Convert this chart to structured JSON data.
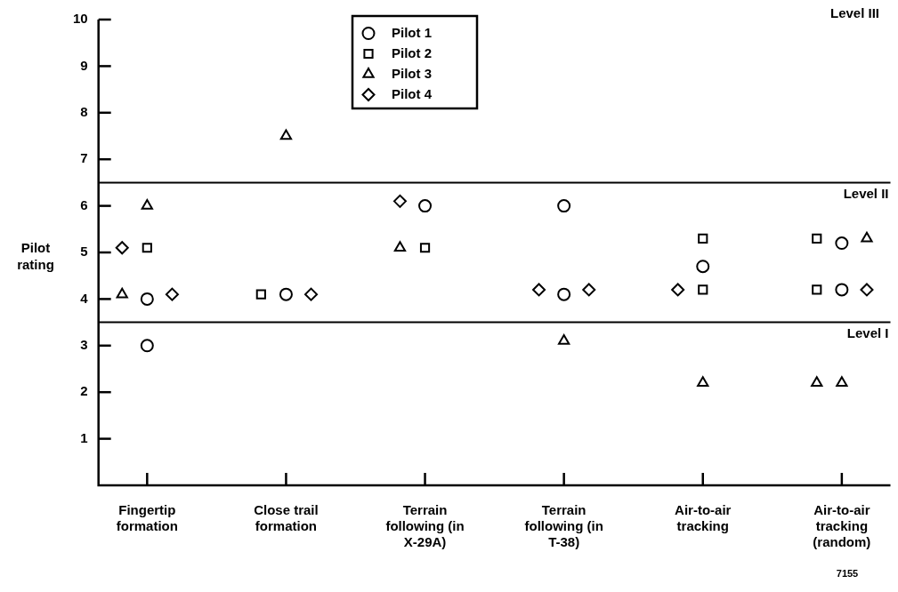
{
  "chart_data": {
    "type": "scatter",
    "ylabel": "Pilot rating",
    "categories": [
      "Fingertip formation",
      "Close trail formation",
      "Terrain following (in X-29A)",
      "Terrain following (in T-38)",
      "Air-to-air tracking",
      "Air-to-air tracking (random)"
    ],
    "ylim": [
      0,
      10
    ],
    "yticks": [
      1,
      2,
      3,
      4,
      5,
      6,
      7,
      8,
      9,
      10
    ],
    "grid": false,
    "legend": "top",
    "series": [
      {
        "name": "Pilot 1",
        "color": "#000000",
        "marker": "circle",
        "x": [
          "Fingertip formation",
          "Fingertip formation",
          "Close trail formation",
          "Terrain following (in X-29A)",
          "Terrain following (in T-38)",
          "Terrain following (in T-38)",
          "Air-to-air tracking",
          "Air-to-air tracking (random)",
          "Air-to-air tracking (random)"
        ],
        "values": [
          4.0,
          3.0,
          4.1,
          6.0,
          6.0,
          4.1,
          4.7,
          5.2,
          4.2
        ]
      },
      {
        "name": "Pilot 2",
        "color": "#000000",
        "marker": "square",
        "x": [
          "Fingertip formation",
          "Close trail formation",
          "Terrain following (in X-29A)",
          "Air-to-air tracking",
          "Air-to-air tracking",
          "Air-to-air tracking (random)",
          "Air-to-air tracking (random)"
        ],
        "values": [
          5.1,
          4.1,
          5.1,
          5.3,
          4.2,
          5.3,
          4.2
        ]
      },
      {
        "name": "Pilot 3",
        "color": "#000000",
        "marker": "triangle",
        "x": [
          "Fingertip formation",
          "Fingertip formation",
          "Close trail formation",
          "Terrain following (in X-29A)",
          "Terrain following (in T-38)",
          "Air-to-air tracking",
          "Air-to-air tracking (random)",
          "Air-to-air tracking (random)",
          "Air-to-air tracking (random)"
        ],
        "values": [
          6.0,
          4.1,
          7.5,
          5.1,
          3.1,
          2.2,
          5.3,
          2.2,
          2.2
        ]
      },
      {
        "name": "Pilot 4",
        "color": "#000000",
        "marker": "diamond",
        "x": [
          "Fingertip formation",
          "Fingertip formation",
          "Close trail formation",
          "Terrain following (in X-29A)",
          "Terrain following (in T-38)",
          "Terrain following (in T-38)",
          "Air-to-air tracking",
          "Air-to-air tracking (random)"
        ],
        "values": [
          5.1,
          4.1,
          4.1,
          6.1,
          4.2,
          4.2,
          4.2,
          4.2
        ]
      }
    ],
    "ref_lines": [
      {
        "axis": "y",
        "value": 6.5,
        "label": "Level II",
        "color": "#000000"
      },
      {
        "axis": "y",
        "value": 3.5,
        "label": "Level I",
        "color": "#000000"
      }
    ],
    "annotations": [
      "Level III",
      "7155"
    ]
  }
}
